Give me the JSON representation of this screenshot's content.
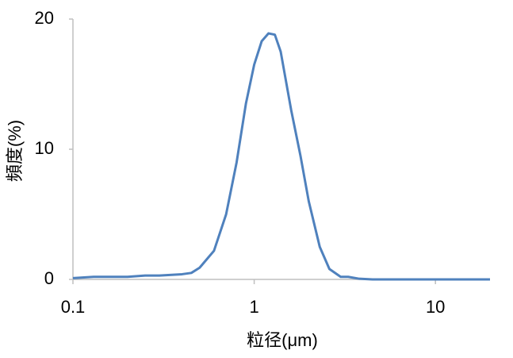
{
  "chart_data": {
    "type": "line",
    "xlabel": "粒径(μm)",
    "ylabel": "頻度(%)",
    "log_x": true,
    "xlim": [
      0.1,
      20
    ],
    "xticks": [
      0.1,
      1,
      10
    ],
    "ylim": [
      0,
      20
    ],
    "yticks": [
      0,
      10,
      20
    ],
    "grid": false,
    "series": [
      {
        "color": "#4f81bd",
        "x": [
          0.1,
          0.13,
          0.2,
          0.25,
          0.3,
          0.4,
          0.45,
          0.5,
          0.6,
          0.7,
          0.8,
          0.9,
          1.0,
          1.1,
          1.2,
          1.3,
          1.4,
          1.6,
          1.8,
          2.0,
          2.3,
          2.6,
          3.0,
          3.3,
          3.8,
          4.5,
          20
        ],
        "values": [
          0.1,
          0.2,
          0.2,
          0.3,
          0.3,
          0.4,
          0.5,
          0.9,
          2.2,
          5,
          9,
          13.5,
          16.5,
          18.3,
          18.9,
          18.8,
          17.5,
          13,
          9.5,
          6,
          2.5,
          0.8,
          0.2,
          0.2,
          0.05,
          0,
          0
        ]
      }
    ]
  }
}
